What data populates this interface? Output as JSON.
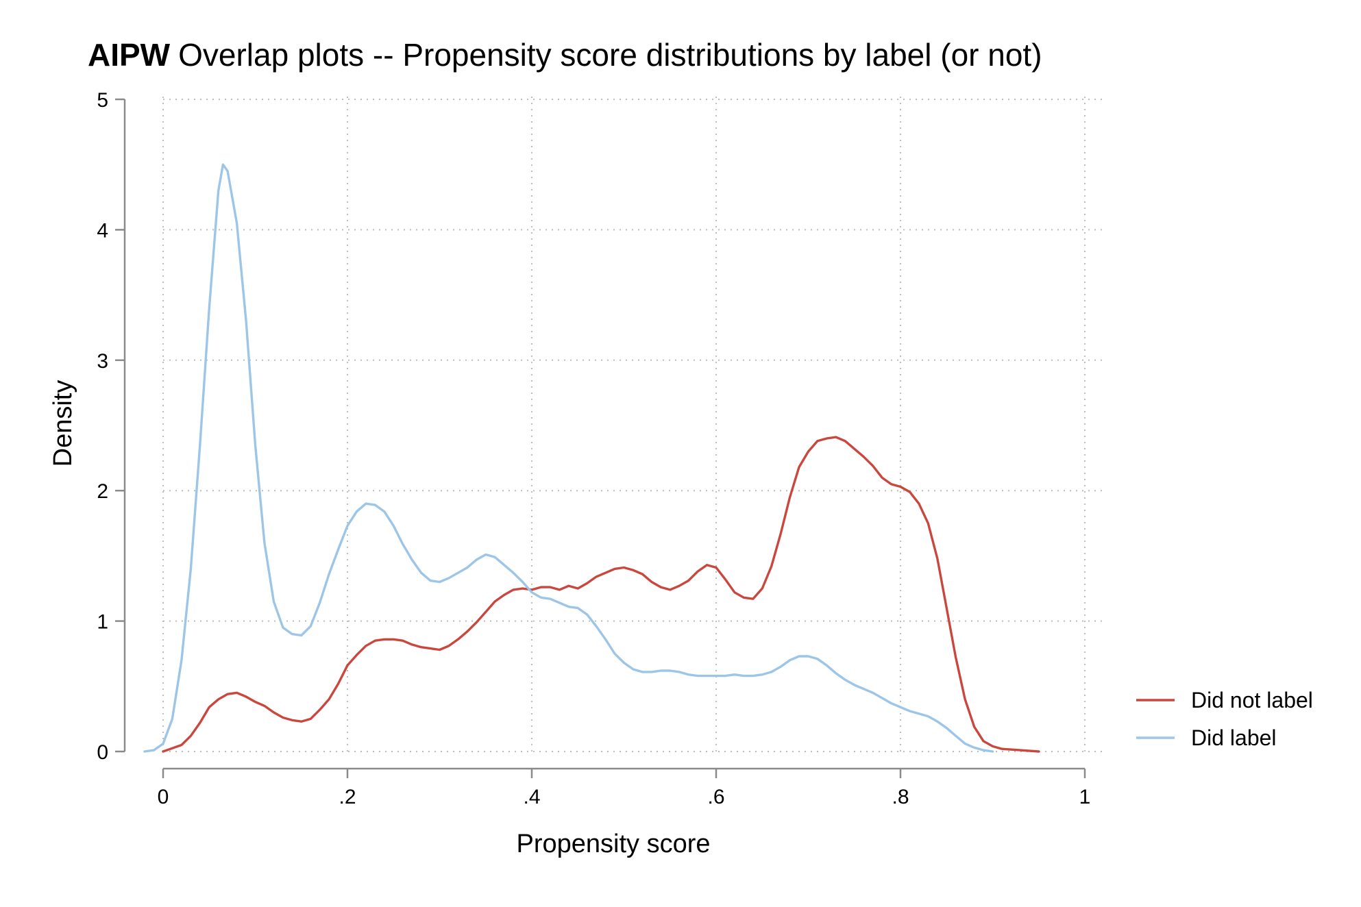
{
  "chart_data": {
    "type": "line",
    "title_bold": "AIPW",
    "title": "Overlap plots -- Propensity score distributions by label (or not)",
    "xlabel": "Propensity score",
    "ylabel": "Density",
    "xlim": [
      0,
      1
    ],
    "ylim": [
      0,
      5
    ],
    "x_ticks": [
      0,
      0.2,
      0.4,
      0.6,
      0.8,
      1
    ],
    "x_tick_labels": [
      "0",
      ".2",
      ".4",
      ".6",
      ".8",
      "1"
    ],
    "y_ticks": [
      0,
      1,
      2,
      3,
      4,
      5
    ],
    "y_tick_labels": [
      "0",
      "1",
      "2",
      "3",
      "4",
      "5"
    ],
    "grid": "dotted",
    "legend_position": "right",
    "series": [
      {
        "name": "Did not label",
        "color": "#c9473d",
        "points": [
          [
            0.0,
            0.0
          ],
          [
            0.02,
            0.05
          ],
          [
            0.03,
            0.12
          ],
          [
            0.04,
            0.22
          ],
          [
            0.05,
            0.34
          ],
          [
            0.06,
            0.4
          ],
          [
            0.07,
            0.44
          ],
          [
            0.08,
            0.45
          ],
          [
            0.09,
            0.42
          ],
          [
            0.1,
            0.38
          ],
          [
            0.11,
            0.35
          ],
          [
            0.12,
            0.3
          ],
          [
            0.13,
            0.26
          ],
          [
            0.14,
            0.24
          ],
          [
            0.15,
            0.23
          ],
          [
            0.16,
            0.25
          ],
          [
            0.17,
            0.32
          ],
          [
            0.18,
            0.4
          ],
          [
            0.19,
            0.52
          ],
          [
            0.2,
            0.66
          ],
          [
            0.21,
            0.74
          ],
          [
            0.22,
            0.81
          ],
          [
            0.23,
            0.85
          ],
          [
            0.24,
            0.86
          ],
          [
            0.25,
            0.86
          ],
          [
            0.26,
            0.85
          ],
          [
            0.27,
            0.82
          ],
          [
            0.28,
            0.8
          ],
          [
            0.29,
            0.79
          ],
          [
            0.3,
            0.78
          ],
          [
            0.31,
            0.81
          ],
          [
            0.32,
            0.86
          ],
          [
            0.33,
            0.92
          ],
          [
            0.34,
            0.99
          ],
          [
            0.35,
            1.07
          ],
          [
            0.36,
            1.15
          ],
          [
            0.37,
            1.2
          ],
          [
            0.38,
            1.24
          ],
          [
            0.39,
            1.25
          ],
          [
            0.4,
            1.24
          ],
          [
            0.41,
            1.26
          ],
          [
            0.42,
            1.26
          ],
          [
            0.43,
            1.24
          ],
          [
            0.44,
            1.27
          ],
          [
            0.45,
            1.25
          ],
          [
            0.46,
            1.29
          ],
          [
            0.47,
            1.34
          ],
          [
            0.48,
            1.37
          ],
          [
            0.49,
            1.4
          ],
          [
            0.5,
            1.41
          ],
          [
            0.51,
            1.39
          ],
          [
            0.52,
            1.36
          ],
          [
            0.53,
            1.3
          ],
          [
            0.54,
            1.26
          ],
          [
            0.55,
            1.24
          ],
          [
            0.56,
            1.27
          ],
          [
            0.57,
            1.31
          ],
          [
            0.58,
            1.38
          ],
          [
            0.59,
            1.43
          ],
          [
            0.6,
            1.41
          ],
          [
            0.61,
            1.32
          ],
          [
            0.62,
            1.22
          ],
          [
            0.63,
            1.18
          ],
          [
            0.64,
            1.17
          ],
          [
            0.65,
            1.25
          ],
          [
            0.66,
            1.42
          ],
          [
            0.67,
            1.67
          ],
          [
            0.68,
            1.95
          ],
          [
            0.69,
            2.18
          ],
          [
            0.7,
            2.3
          ],
          [
            0.71,
            2.38
          ],
          [
            0.72,
            2.4
          ],
          [
            0.73,
            2.41
          ],
          [
            0.74,
            2.38
          ],
          [
            0.75,
            2.32
          ],
          [
            0.76,
            2.26
          ],
          [
            0.77,
            2.19
          ],
          [
            0.78,
            2.1
          ],
          [
            0.79,
            2.05
          ],
          [
            0.8,
            2.03
          ],
          [
            0.81,
            1.99
          ],
          [
            0.82,
            1.9
          ],
          [
            0.83,
            1.75
          ],
          [
            0.84,
            1.48
          ],
          [
            0.85,
            1.1
          ],
          [
            0.86,
            0.72
          ],
          [
            0.87,
            0.4
          ],
          [
            0.88,
            0.19
          ],
          [
            0.89,
            0.08
          ],
          [
            0.9,
            0.04
          ],
          [
            0.91,
            0.02
          ],
          [
            0.93,
            0.01
          ],
          [
            0.95,
            0.0
          ]
        ]
      },
      {
        "name": "Did label",
        "color": "#9cc5e8",
        "points": [
          [
            -0.02,
            0.0
          ],
          [
            -0.01,
            0.01
          ],
          [
            0.0,
            0.06
          ],
          [
            0.01,
            0.25
          ],
          [
            0.02,
            0.7
          ],
          [
            0.03,
            1.4
          ],
          [
            0.04,
            2.35
          ],
          [
            0.05,
            3.4
          ],
          [
            0.06,
            4.3
          ],
          [
            0.065,
            4.5
          ],
          [
            0.07,
            4.45
          ],
          [
            0.08,
            4.05
          ],
          [
            0.09,
            3.3
          ],
          [
            0.1,
            2.35
          ],
          [
            0.11,
            1.6
          ],
          [
            0.12,
            1.15
          ],
          [
            0.13,
            0.95
          ],
          [
            0.14,
            0.9
          ],
          [
            0.15,
            0.89
          ],
          [
            0.16,
            0.96
          ],
          [
            0.17,
            1.14
          ],
          [
            0.18,
            1.36
          ],
          [
            0.19,
            1.55
          ],
          [
            0.2,
            1.73
          ],
          [
            0.21,
            1.84
          ],
          [
            0.22,
            1.9
          ],
          [
            0.23,
            1.89
          ],
          [
            0.24,
            1.84
          ],
          [
            0.25,
            1.73
          ],
          [
            0.26,
            1.59
          ],
          [
            0.27,
            1.47
          ],
          [
            0.28,
            1.37
          ],
          [
            0.29,
            1.31
          ],
          [
            0.3,
            1.3
          ],
          [
            0.31,
            1.33
          ],
          [
            0.32,
            1.37
          ],
          [
            0.33,
            1.41
          ],
          [
            0.34,
            1.47
          ],
          [
            0.35,
            1.51
          ],
          [
            0.36,
            1.49
          ],
          [
            0.37,
            1.43
          ],
          [
            0.38,
            1.37
          ],
          [
            0.39,
            1.3
          ],
          [
            0.4,
            1.22
          ],
          [
            0.41,
            1.18
          ],
          [
            0.42,
            1.17
          ],
          [
            0.43,
            1.14
          ],
          [
            0.44,
            1.11
          ],
          [
            0.45,
            1.1
          ],
          [
            0.46,
            1.05
          ],
          [
            0.47,
            0.96
          ],
          [
            0.48,
            0.86
          ],
          [
            0.49,
            0.75
          ],
          [
            0.5,
            0.68
          ],
          [
            0.51,
            0.63
          ],
          [
            0.52,
            0.61
          ],
          [
            0.53,
            0.61
          ],
          [
            0.54,
            0.62
          ],
          [
            0.55,
            0.62
          ],
          [
            0.56,
            0.61
          ],
          [
            0.57,
            0.59
          ],
          [
            0.58,
            0.58
          ],
          [
            0.59,
            0.58
          ],
          [
            0.6,
            0.58
          ],
          [
            0.61,
            0.58
          ],
          [
            0.62,
            0.59
          ],
          [
            0.63,
            0.58
          ],
          [
            0.64,
            0.58
          ],
          [
            0.65,
            0.59
          ],
          [
            0.66,
            0.61
          ],
          [
            0.67,
            0.65
          ],
          [
            0.68,
            0.7
          ],
          [
            0.69,
            0.73
          ],
          [
            0.7,
            0.73
          ],
          [
            0.71,
            0.71
          ],
          [
            0.72,
            0.66
          ],
          [
            0.73,
            0.6
          ],
          [
            0.74,
            0.55
          ],
          [
            0.75,
            0.51
          ],
          [
            0.76,
            0.48
          ],
          [
            0.77,
            0.45
          ],
          [
            0.78,
            0.41
          ],
          [
            0.79,
            0.37
          ],
          [
            0.8,
            0.34
          ],
          [
            0.81,
            0.31
          ],
          [
            0.82,
            0.29
          ],
          [
            0.83,
            0.27
          ],
          [
            0.84,
            0.23
          ],
          [
            0.85,
            0.18
          ],
          [
            0.86,
            0.12
          ],
          [
            0.87,
            0.06
          ],
          [
            0.88,
            0.03
          ],
          [
            0.89,
            0.01
          ],
          [
            0.9,
            0.0
          ]
        ]
      }
    ]
  }
}
